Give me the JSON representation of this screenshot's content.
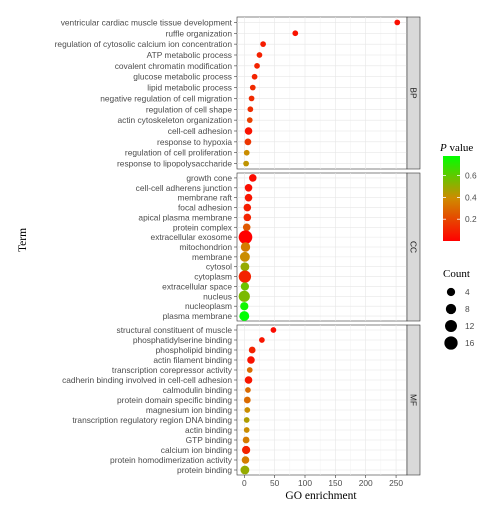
{
  "chart_data": {
    "type": "scatter",
    "xlabel": "GO enrichment",
    "ylabel": "Term",
    "xlim": [
      -12,
      268
    ],
    "xticks": [
      0,
      50,
      100,
      150,
      200,
      250
    ],
    "grid": true,
    "color_legend": {
      "title_italic": "P",
      "title_rest": " value",
      "min": 0.0,
      "max": 0.78,
      "ticks": [
        0.2,
        0.4,
        0.6
      ],
      "low_color": "#ff0000",
      "high_color": "#00ff00"
    },
    "size_legend": {
      "title": "Count",
      "values": [
        4,
        8,
        12,
        16
      ]
    },
    "panels": [
      {
        "label": "BP",
        "terms": [
          {
            "term": "ventricular cardiac muscle tissue development",
            "x": 252,
            "count": 1,
            "p": 0.04
          },
          {
            "term": "ruffle organization",
            "x": 84,
            "count": 1,
            "p": 0.05
          },
          {
            "term": "regulation of cytosolic calcium ion concentration",
            "x": 31,
            "count": 1,
            "p": 0.08
          },
          {
            "term": "ATP metabolic process",
            "x": 25,
            "count": 1,
            "p": 0.09
          },
          {
            "term": "covalent chromatin modification",
            "x": 21,
            "count": 1,
            "p": 0.1
          },
          {
            "term": "glucose metabolic process",
            "x": 17,
            "count": 1,
            "p": 0.1
          },
          {
            "term": "lipid metabolic process",
            "x": 14,
            "count": 1,
            "p": 0.12
          },
          {
            "term": "negative regulation of cell migration",
            "x": 12,
            "count": 1,
            "p": 0.12
          },
          {
            "term": "regulation of cell shape",
            "x": 10,
            "count": 1,
            "p": 0.13
          },
          {
            "term": "actin cytoskeleton organization",
            "x": 9,
            "count": 1,
            "p": 0.18
          },
          {
            "term": "cell-cell adhesion",
            "x": 7,
            "count": 3,
            "p": 0.05
          },
          {
            "term": "response to hypoxia",
            "x": 6,
            "count": 2,
            "p": 0.15
          },
          {
            "term": "regulation of cell proliferation",
            "x": 4,
            "count": 1,
            "p": 0.4
          },
          {
            "term": "response to lipopolysaccharide",
            "x": 3,
            "count": 1,
            "p": 0.42
          }
        ]
      },
      {
        "label": "CC",
        "terms": [
          {
            "term": "growth cone",
            "x": 14,
            "count": 3,
            "p": 0.03
          },
          {
            "term": "cell-cell adherens junction",
            "x": 7,
            "count": 3,
            "p": 0.04
          },
          {
            "term": "membrane raft",
            "x": 7,
            "count": 3,
            "p": 0.06
          },
          {
            "term": "focal adhesion",
            "x": 5,
            "count": 3,
            "p": 0.08
          },
          {
            "term": "apical plasma membrane",
            "x": 5,
            "count": 3,
            "p": 0.1
          },
          {
            "term": "protein complex",
            "x": 4,
            "count": 3,
            "p": 0.25
          },
          {
            "term": "extracellular exosome",
            "x": 2,
            "count": 17,
            "p": 0.0
          },
          {
            "term": "mitochondrion",
            "x": 2,
            "count": 6,
            "p": 0.35
          },
          {
            "term": "membrane",
            "x": 1,
            "count": 7,
            "p": 0.4
          },
          {
            "term": "cytosol",
            "x": 1,
            "count": 5,
            "p": 0.5
          },
          {
            "term": "cytoplasm",
            "x": 1,
            "count": 13,
            "p": 0.1
          },
          {
            "term": "extracellular space",
            "x": 1,
            "count": 4,
            "p": 0.58
          },
          {
            "term": "nucleus",
            "x": 0,
            "count": 10,
            "p": 0.55
          },
          {
            "term": "nucleoplasm",
            "x": 0,
            "count": 4,
            "p": 0.75
          },
          {
            "term": "plasma membrane",
            "x": 0,
            "count": 7,
            "p": 0.78
          }
        ]
      },
      {
        "label": "MF",
        "terms": [
          {
            "term": "structural constituent of muscle",
            "x": 48,
            "count": 1,
            "p": 0.03
          },
          {
            "term": "phosphatidylserine binding",
            "x": 29,
            "count": 1,
            "p": 0.06
          },
          {
            "term": "phospholipid binding",
            "x": 13,
            "count": 2,
            "p": 0.1
          },
          {
            "term": "actin filament binding",
            "x": 11,
            "count": 3,
            "p": 0.05
          },
          {
            "term": "transcription corepressor activity",
            "x": 9,
            "count": 1,
            "p": 0.3
          },
          {
            "term": "cadherin binding involved in cell-cell adhesion",
            "x": 7,
            "count": 3,
            "p": 0.06
          },
          {
            "term": "calmodulin binding",
            "x": 6,
            "count": 1,
            "p": 0.3
          },
          {
            "term": "protein domain specific binding",
            "x": 5,
            "count": 2,
            "p": 0.3
          },
          {
            "term": "magnesium ion binding",
            "x": 5,
            "count": 1,
            "p": 0.4
          },
          {
            "term": "transcription regulatory region DNA binding",
            "x": 4,
            "count": 1,
            "p": 0.45
          },
          {
            "term": "actin binding",
            "x": 4,
            "count": 1,
            "p": 0.4
          },
          {
            "term": "GTP binding",
            "x": 3,
            "count": 2,
            "p": 0.35
          },
          {
            "term": "calcium ion binding",
            "x": 3,
            "count": 4,
            "p": 0.1
          },
          {
            "term": "protein homodimerization activity",
            "x": 2,
            "count": 3,
            "p": 0.35
          },
          {
            "term": "protein binding",
            "x": 1,
            "count": 5,
            "p": 0.5
          }
        ]
      }
    ]
  }
}
